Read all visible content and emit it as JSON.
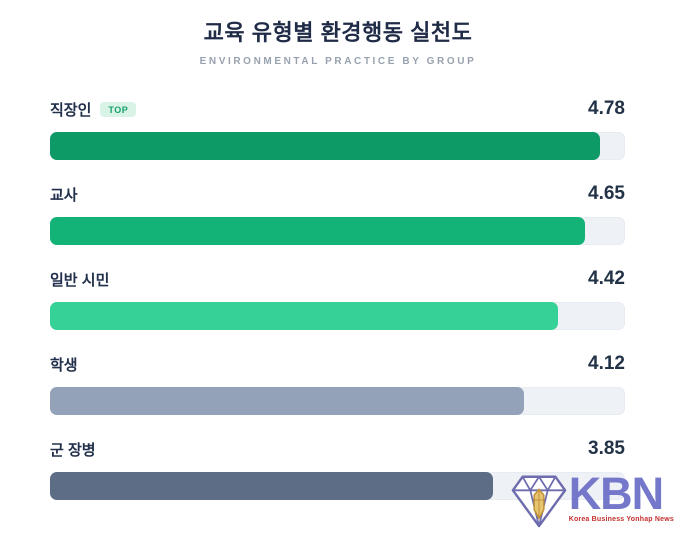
{
  "header": {
    "title": "교육 유형별 환경행동 실천도",
    "subtitle": "ENVIRONMENTAL PRACTICE BY GROUP"
  },
  "chart_data": {
    "type": "bar",
    "orientation": "horizontal",
    "title": "교육 유형별 환경행동 실천도",
    "subtitle": "ENVIRONMENTAL PRACTICE BY GROUP",
    "categories": [
      "직장인",
      "교사",
      "일반 시민",
      "학생",
      "군 장병"
    ],
    "values": [
      4.78,
      4.65,
      4.42,
      4.12,
      3.85
    ],
    "xlim": [
      0,
      5
    ],
    "grid": false,
    "legend": false,
    "value_labels_position": "right",
    "bar_colors": [
      "#0d9a66",
      "#13b377",
      "#35d197",
      "#93a2b8",
      "#5d6d86"
    ],
    "track_color": "#eef1f6",
    "label_color": "#22304b",
    "value_color": "#223247",
    "top_badge": {
      "row_index": 0,
      "label": "TOP",
      "bg_color": "#d9f4e7",
      "text_color": "#17a06b"
    }
  },
  "logo": {
    "name": "KBN",
    "tagline": "Korea Business Yonhap News",
    "text_color": "#7577ca",
    "tagline_color": "#c42f2f",
    "icon": "diamond-icon",
    "icon_outline_color": "#6c6cae",
    "icon_gem_color": "#e8c571"
  }
}
